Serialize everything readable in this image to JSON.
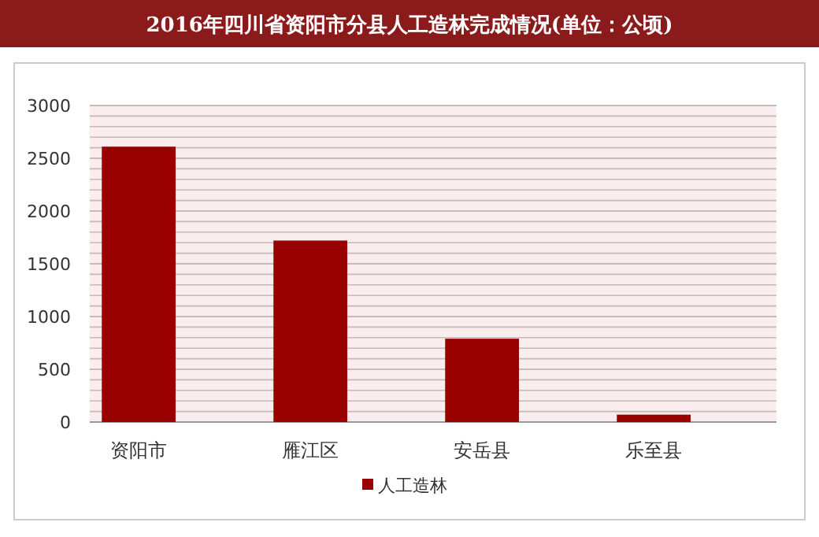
{
  "chart_data": {
    "type": "bar",
    "title": "2016年四川省资阳市分县人工造林完成情况(单位：公顷)",
    "categories": [
      "资阳市",
      "雁江区",
      "安岳县",
      "乐至县"
    ],
    "series": [
      {
        "name": "人工造林",
        "color": "#990000",
        "values": [
          2610,
          1720,
          790,
          70
        ]
      }
    ],
    "ylim": [
      0,
      3000
    ],
    "yticks": [
      0,
      500,
      1000,
      1500,
      2000,
      2500,
      3000
    ],
    "grid": "y",
    "legend": "bottom"
  }
}
